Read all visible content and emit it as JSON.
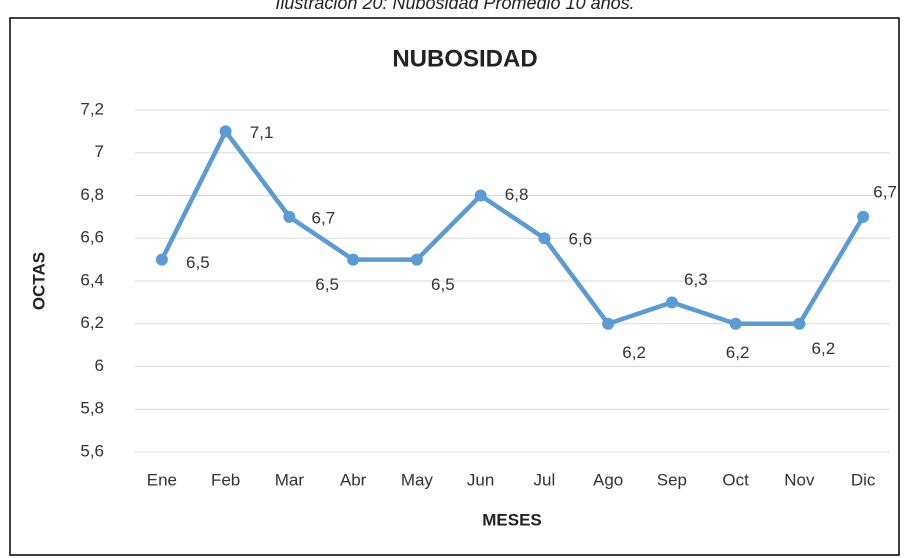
{
  "caption": "Ilustración 20: Nubosidad Promedio 10 años.",
  "chart_data": {
    "type": "line",
    "title": "NUBOSIDAD",
    "x_label": "MESES",
    "y_label": "OCTAS",
    "categories": [
      "Ene",
      "Feb",
      "Mar",
      "Abr",
      "May",
      "Jun",
      "Jul",
      "Ago",
      "Sep",
      "Oct",
      "Nov",
      "Dic"
    ],
    "series": [
      {
        "name": "Nubosidad",
        "color": "#5b9bd5",
        "values": [
          6.5,
          7.1,
          6.7,
          6.5,
          6.5,
          6.8,
          6.6,
          6.2,
          6.3,
          6.2,
          6.2,
          6.7
        ],
        "value_labels": [
          "6,5",
          "7,1",
          "6,7",
          "6,5",
          "6,5",
          "6,8",
          "6,6",
          "6,2",
          "6,3",
          "6,2",
          "6,2",
          "6,7"
        ]
      }
    ],
    "ylim": [
      5.6,
      7.2
    ],
    "yticks": [
      {
        "value": 5.6,
        "label": "5,6"
      },
      {
        "value": 5.8,
        "label": "5,8"
      },
      6,
      {
        "value": 6.2,
        "label": "6,2"
      },
      {
        "value": 6.4,
        "label": "6,4"
      },
      {
        "value": 6.6,
        "label": "6,6"
      },
      {
        "value": 6.8,
        "label": "6,8"
      },
      7,
      {
        "value": 7.2,
        "label": "7,2"
      }
    ],
    "grid": true
  }
}
